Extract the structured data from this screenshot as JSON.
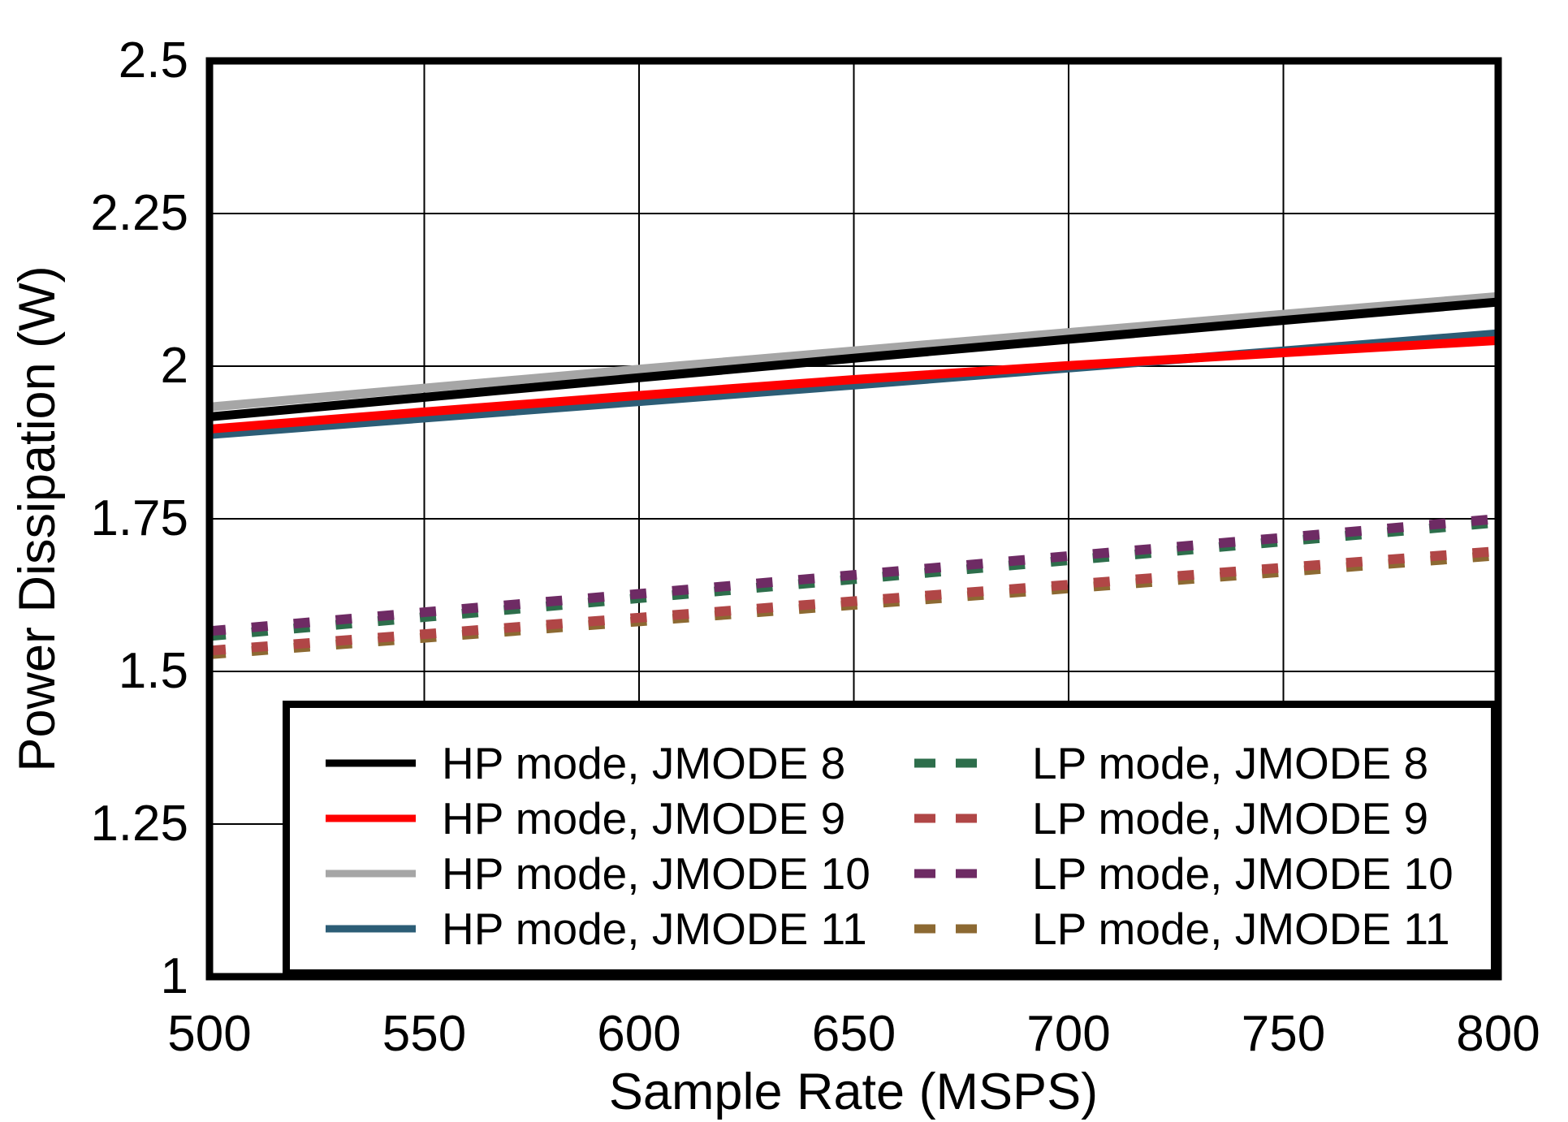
{
  "figure": {
    "background": "#FFFFFF",
    "axis_color": "#000000",
    "grid_color": "#000000"
  },
  "chart_data": {
    "type": "line",
    "title": "",
    "xlabel": "Sample Rate (MSPS)",
    "ylabel": "Power Dissipation (W)",
    "xlim": [
      500,
      800
    ],
    "ylim": [
      1,
      2.5
    ],
    "x_ticks": [
      "500",
      "550",
      "600",
      "650",
      "700",
      "750",
      "800"
    ],
    "y_ticks": [
      "1",
      "1.25",
      "1.5",
      "1.75",
      "2",
      "2.25",
      "2.5"
    ],
    "grid": true,
    "legend_position": "inside-bottom-right",
    "legend_columns": 2,
    "x": [
      500,
      550,
      600,
      650,
      700,
      750,
      800
    ],
    "series": [
      {
        "name": "HP mode, JMODE 8",
        "mode": "HP",
        "jmode": 8,
        "style": "solid",
        "color": "#000000",
        "values": [
          1.917,
          1.949,
          1.981,
          2.013,
          2.044,
          2.075,
          2.105
        ]
      },
      {
        "name": "HP mode, JMODE 9",
        "mode": "HP",
        "jmode": 9,
        "style": "solid",
        "color": "#FF0000",
        "values": [
          1.897,
          1.925,
          1.952,
          1.978,
          2.001,
          2.022,
          2.042
        ]
      },
      {
        "name": "HP mode, JMODE 10",
        "mode": "HP",
        "jmode": 10,
        "style": "solid",
        "color": "#A6A6A6",
        "values": [
          1.933,
          1.964,
          1.995,
          2.025,
          2.055,
          2.085,
          2.114
        ]
      },
      {
        "name": "HP mode, JMODE 11",
        "mode": "HP",
        "jmode": 11,
        "style": "solid",
        "color": "#2C5D76",
        "values": [
          1.888,
          1.915,
          1.942,
          1.969,
          1.997,
          2.025,
          2.053
        ]
      },
      {
        "name": "LP mode, JMODE 8",
        "mode": "LP",
        "jmode": 8,
        "style": "dashed",
        "color": "#2D6E4B",
        "values": [
          1.558,
          1.589,
          1.62,
          1.651,
          1.682,
          1.713,
          1.744
        ]
      },
      {
        "name": "LP mode, JMODE 9",
        "mode": "LP",
        "jmode": 9,
        "style": "dashed",
        "color": "#B04646",
        "values": [
          1.534,
          1.561,
          1.588,
          1.615,
          1.642,
          1.67,
          1.697
        ]
      },
      {
        "name": "LP mode, JMODE 10",
        "mode": "LP",
        "jmode": 10,
        "style": "dashed",
        "color": "#6E2B64",
        "values": [
          1.566,
          1.597,
          1.627,
          1.658,
          1.689,
          1.719,
          1.75
        ]
      },
      {
        "name": "LP mode, JMODE 11",
        "mode": "LP",
        "jmode": 11,
        "style": "dashed",
        "color": "#8C6932",
        "values": [
          1.528,
          1.555,
          1.582,
          1.609,
          1.636,
          1.663,
          1.69
        ]
      }
    ],
    "draw_order": [
      2,
      0,
      3,
      1,
      4,
      6,
      7,
      5
    ]
  }
}
